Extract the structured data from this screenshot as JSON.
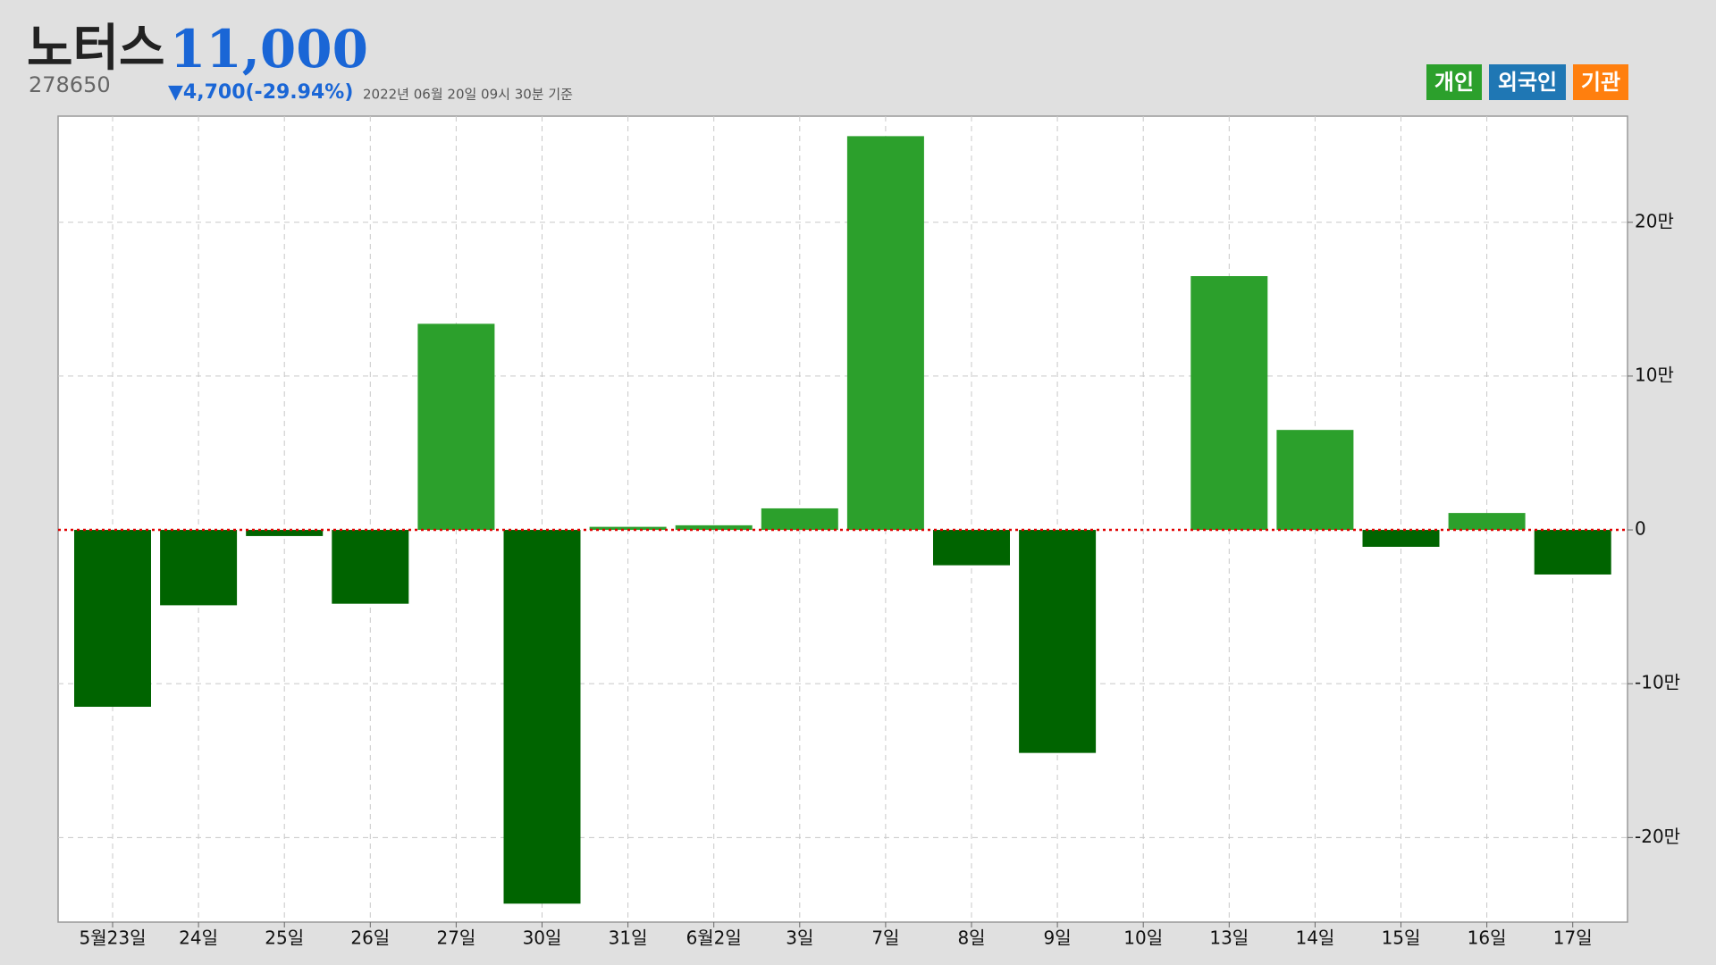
{
  "chart_data": {
    "type": "bar",
    "title": "노터스",
    "price": "11,000",
    "code": "278650",
    "change": "▼4,700(-29.94%)",
    "timestamp": "2022년 06월 20일 09시 30분 기준",
    "legend": [
      {
        "name": "개인",
        "color": "#2ca02c"
      },
      {
        "name": "외국인",
        "color": "#1f77b4"
      },
      {
        "name": "기관",
        "color": "#ff7f0e"
      }
    ],
    "categories": [
      "5월23일",
      "24일",
      "25일",
      "26일",
      "27일",
      "30일",
      "31일",
      "6월2일",
      "3일",
      "7일",
      "8일",
      "9일",
      "10일",
      "13일",
      "14일",
      "15일",
      "16일",
      "17일"
    ],
    "values": [
      -115000,
      -49000,
      -4000,
      -48000,
      134000,
      -243000,
      2000,
      3000,
      14000,
      256000,
      -23000,
      -145000,
      0,
      165000,
      65000,
      -11000,
      11000,
      -29000
    ],
    "color": "#2ca02c",
    "negative_color": "#006400",
    "ylim": [
      -255000,
      269000
    ],
    "yticks": [
      {
        "value": -200000,
        "label": "-20만"
      },
      {
        "value": -100000,
        "label": "-10만"
      },
      0,
      {
        "value": 100000,
        "label": "10만"
      },
      {
        "value": 200000,
        "label": "20만"
      }
    ],
    "grid": true,
    "zero_line_color": "#e00000"
  }
}
